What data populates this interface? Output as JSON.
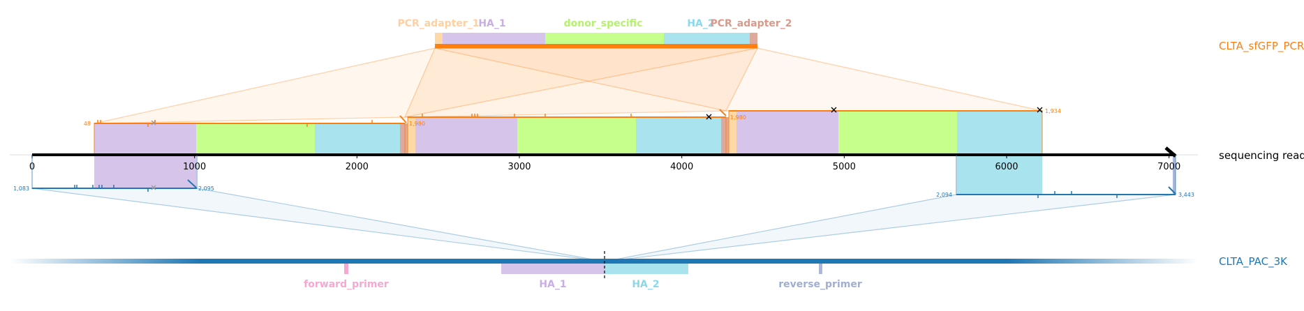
{
  "colors": {
    "pcr": "#ff7f0e",
    "pcr_light": "#fde3c8",
    "pac": "#1f77b4",
    "pac_light": "#dbe8f3",
    "ha1": "#d7c4ea",
    "ha2": "#a8e3ee",
    "donor_specific": "#c6ff8c",
    "pcr_adapter_1": "#ffd8a8",
    "pcr_adapter_2": "#dea89a",
    "forward_primer": "#f7a8d0",
    "reverse_primer": "#a9b8dc",
    "read_axis": "#000000"
  },
  "references": {
    "top": {
      "name": "CLTA_sfGFP_PCR",
      "features": [
        {
          "name": "PCR_adapter_1",
          "label_color": "#ffcfa0"
        },
        {
          "name": "HA_1",
          "label_color": "#c9aee6"
        },
        {
          "name": "donor_specific",
          "label_color": "#b6f070"
        },
        {
          "name": "HA_2",
          "label_color": "#8ad8ea"
        },
        {
          "name": "PCR_adapter_2",
          "label_color": "#d99a8a"
        }
      ]
    },
    "read": {
      "name": "sequencing read",
      "ticks": [
        "0",
        "1000",
        "2000",
        "3000",
        "4000",
        "5000",
        "6000",
        "7000"
      ],
      "tick_values": [
        0,
        1000,
        2000,
        3000,
        4000,
        5000,
        6000,
        7000
      ],
      "length": 7040
    },
    "bottom": {
      "name": "CLTA_PAC_3K",
      "features": [
        {
          "name": "forward_primer",
          "label_color": "#f7a8d0"
        },
        {
          "name": "HA_1",
          "label_color": "#c9aee6"
        },
        {
          "name": "HA_2",
          "label_color": "#8ad8ea"
        },
        {
          "name": "reverse_primer",
          "label_color": "#a0aed2"
        }
      ]
    }
  },
  "alignments": {
    "pcr": [
      {
        "start_label": "48",
        "end_label": "1,980",
        "read_start": 380,
        "read_end": 2310
      },
      {
        "start_label": "",
        "end_label": "1,980",
        "read_start": 2310,
        "read_end": 4280
      },
      {
        "start_label": "",
        "end_label": "1,934",
        "read_start": 4280,
        "read_end": 6220
      }
    ],
    "pac": [
      {
        "start_label": "1,083",
        "end_label": "2,095",
        "read_start": 0,
        "read_end": 1010
      },
      {
        "start_label": "2,094",
        "end_label": "3,443",
        "read_start": 5680,
        "read_end": 7040
      }
    ]
  }
}
